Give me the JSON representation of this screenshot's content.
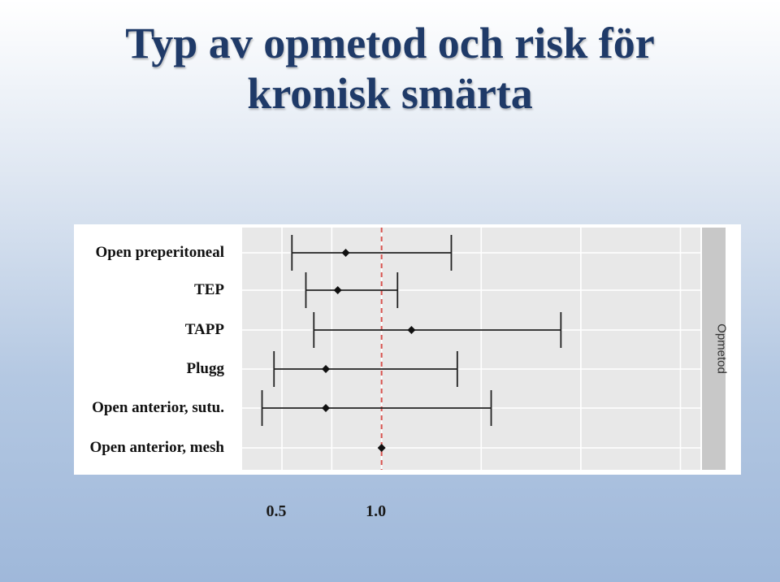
{
  "title_lines": [
    "Typ av opmetod och risk för",
    "kronisk smärta"
  ],
  "colors": {
    "title": "#1f3a68",
    "panel_bg": "#e8e8e8",
    "grid": "#ffffff",
    "strip_bg": "#c8c8c8",
    "reference_line": "#d9534f",
    "errorbar": "#222222"
  },
  "chart_data": {
    "type": "forest",
    "strip_label": "Opmetod",
    "reference_value": 1.0,
    "x_tick_labels": [
      "0.5",
      "1.0"
    ],
    "x_ticks": [
      0.5,
      1.0
    ],
    "xlim": [
      0.3,
      2.6
    ],
    "rows": [
      {
        "label": "Open preperitoneal",
        "estimate": 0.82,
        "lower": 0.55,
        "upper": 1.35
      },
      {
        "label": "TEP",
        "estimate": 0.78,
        "lower": 0.62,
        "upper": 1.08
      },
      {
        "label": "TAPP",
        "estimate": 1.15,
        "lower": 0.66,
        "upper": 1.9
      },
      {
        "label": "Plugg",
        "estimate": 0.72,
        "lower": 0.46,
        "upper": 1.38
      },
      {
        "label": "Open anterior, sutu.",
        "estimate": 0.72,
        "lower": 0.4,
        "upper": 1.55
      },
      {
        "label": "Open anterior, mesh",
        "estimate": 1.0,
        "lower": 1.0,
        "upper": 1.0
      }
    ]
  }
}
